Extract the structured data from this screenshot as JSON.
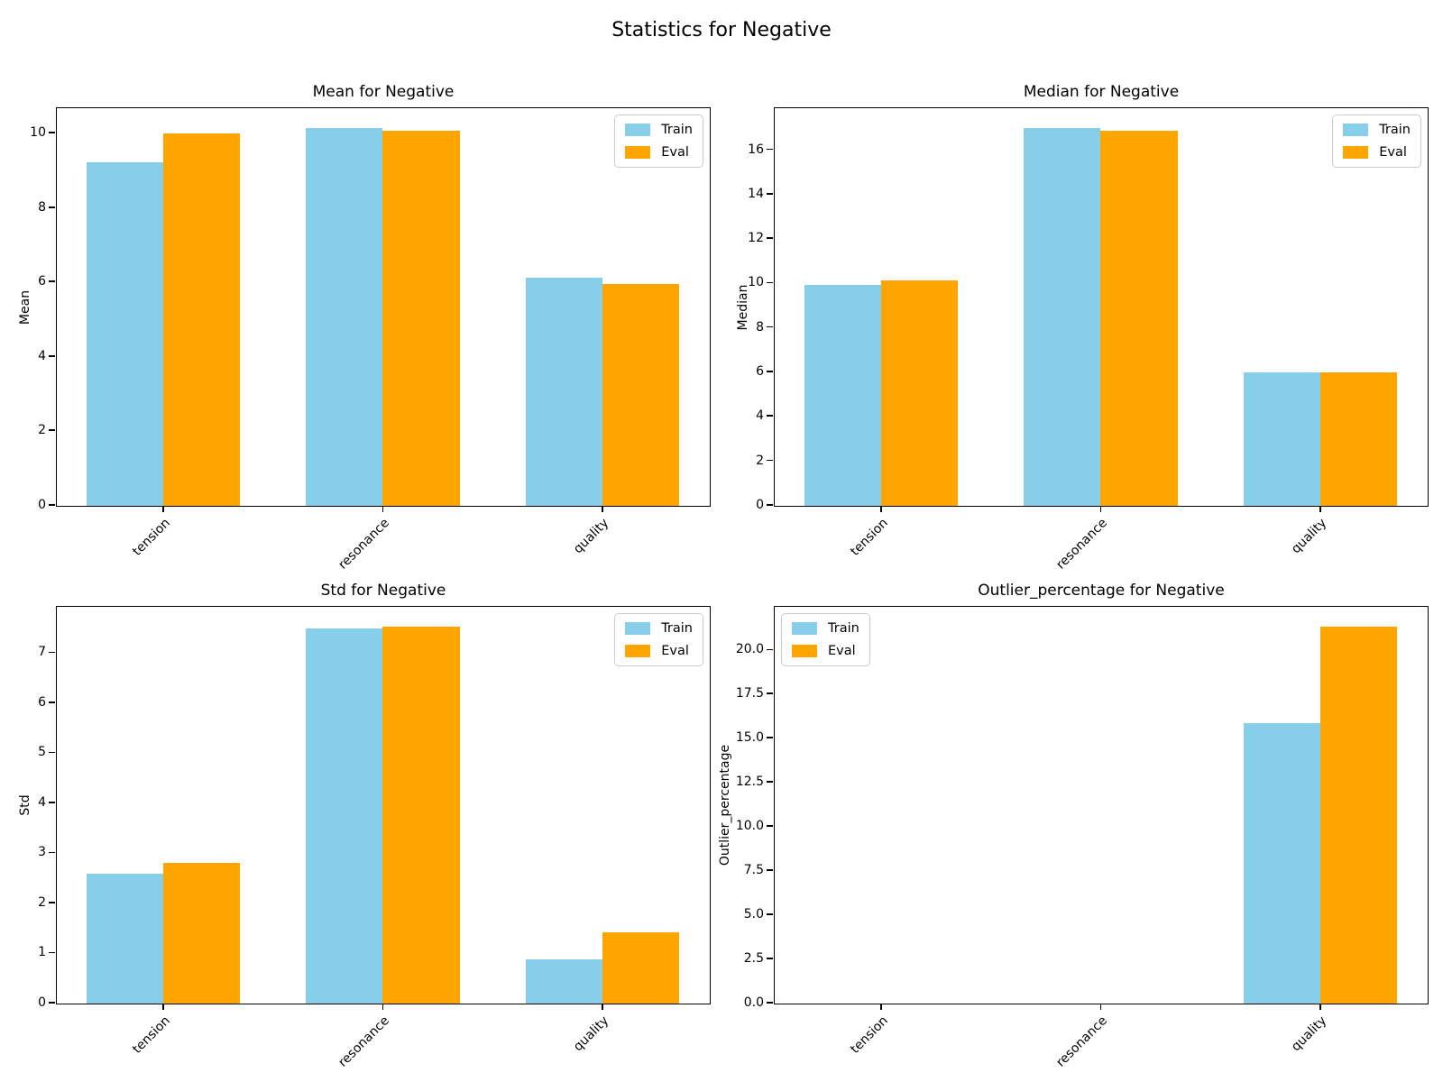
{
  "figure": {
    "suptitle": "Statistics for Negative",
    "colors": {
      "train": "#87CEEB",
      "eval": "#FFA500"
    }
  },
  "legend": {
    "train_label": "Train",
    "eval_label": "Eval"
  },
  "chart_data": [
    {
      "type": "bar",
      "title": "Mean for Negative",
      "ylabel": "Mean",
      "xlabel": "",
      "categories": [
        "tension",
        "resonance",
        "quality"
      ],
      "series": [
        {
          "name": "Train",
          "color": "#87CEEB",
          "values": [
            9.23,
            10.15,
            6.14
          ]
        },
        {
          "name": "Eval",
          "color": "#FFA500",
          "values": [
            10.02,
            10.09,
            5.96
          ]
        }
      ],
      "ylim": [
        0,
        10.66
      ],
      "yticks": [
        0,
        2,
        4,
        6,
        8,
        10
      ],
      "ytick_decimals": 0,
      "grid": false,
      "legend_position": "upper-right"
    },
    {
      "type": "bar",
      "title": "Median for Negative",
      "ylabel": "Median",
      "xlabel": "",
      "categories": [
        "tension",
        "resonance",
        "quality"
      ],
      "series": [
        {
          "name": "Train",
          "color": "#87CEEB",
          "values": [
            9.93,
            17.0,
            6.0
          ]
        },
        {
          "name": "Eval",
          "color": "#FFA500",
          "values": [
            10.13,
            16.9,
            6.0
          ]
        }
      ],
      "ylim": [
        0,
        17.85
      ],
      "yticks": [
        0,
        2,
        4,
        6,
        8,
        10,
        12,
        14,
        16
      ],
      "ytick_decimals": 0,
      "grid": false,
      "legend_position": "upper-right"
    },
    {
      "type": "bar",
      "title": "Std for Negative",
      "ylabel": "Std",
      "xlabel": "",
      "categories": [
        "tension",
        "resonance",
        "quality"
      ],
      "series": [
        {
          "name": "Train",
          "color": "#87CEEB",
          "values": [
            2.59,
            7.5,
            0.89
          ]
        },
        {
          "name": "Eval",
          "color": "#FFA500",
          "values": [
            2.81,
            7.53,
            1.43
          ]
        }
      ],
      "ylim": [
        0,
        7.91
      ],
      "yticks": [
        0,
        1,
        2,
        3,
        4,
        5,
        6,
        7
      ],
      "ytick_decimals": 0,
      "grid": false,
      "legend_position": "upper-right"
    },
    {
      "type": "bar",
      "title": "Outlier_percentage for Negative",
      "ylabel": "Outlier_percentage",
      "xlabel": "",
      "categories": [
        "tension",
        "resonance",
        "quality"
      ],
      "series": [
        {
          "name": "Train",
          "color": "#87CEEB",
          "values": [
            0,
            0,
            15.9
          ]
        },
        {
          "name": "Eval",
          "color": "#FFA500",
          "values": [
            0,
            0,
            21.35
          ]
        }
      ],
      "ylim": [
        0,
        22.42
      ],
      "yticks": [
        0,
        2.5,
        5,
        7.5,
        10,
        12.5,
        15,
        17.5,
        20
      ],
      "ytick_decimals": 1,
      "grid": false,
      "legend_position": "upper-left"
    }
  ]
}
